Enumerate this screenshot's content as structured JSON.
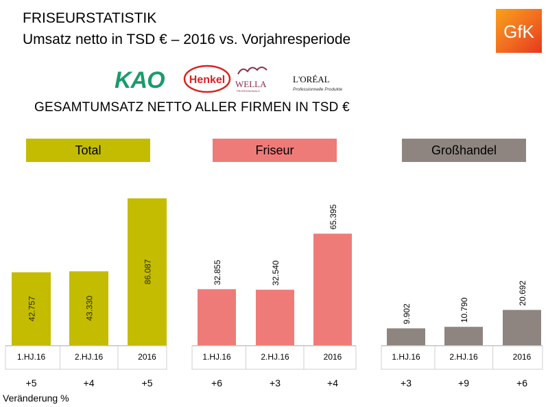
{
  "header": {
    "title": "FRISEURSTATISTIK",
    "subtitle": "Umsatz netto in TSD € – 2016 vs. Vorjahresperiode",
    "section_title": "GESAMTUMSATZ NETTO ALLER FIRMEN IN TSD €"
  },
  "logos": {
    "gfk": "GfK",
    "kao": "KAO",
    "henkel": "Henkel",
    "wella": "WELLA",
    "wella_sub": "PROFESSIONALS",
    "loreal": "L'ORÉAL",
    "loreal_sub": "Professionnelle Produkte"
  },
  "footnote": "Veränderung %",
  "chart_data": [
    {
      "type": "bar",
      "title": "Total",
      "color": "#c4bc00",
      "categories": [
        "1.HJ.16",
        "2.HJ.16",
        "2016"
      ],
      "values": [
        42757,
        43330,
        86087
      ],
      "value_labels": [
        "42.757",
        "43.330",
        "86.087"
      ],
      "changes": [
        "+5",
        "+4",
        "+5"
      ],
      "ylim": [
        0,
        86087
      ]
    },
    {
      "type": "bar",
      "title": "Friseur",
      "color": "#ef7b78",
      "categories": [
        "1.HJ.16",
        "2.HJ.16",
        "2016"
      ],
      "values": [
        32855,
        32540,
        65395
      ],
      "value_labels": [
        "32.855",
        "32.540",
        "65.395"
      ],
      "changes": [
        "+6",
        "+3",
        "+4"
      ],
      "ylim": [
        0,
        86087
      ]
    },
    {
      "type": "bar",
      "title": "Großhandel",
      "color": "#8e8580",
      "categories": [
        "1.HJ.16",
        "2.HJ.16",
        "2016"
      ],
      "values": [
        9902,
        10790,
        20692
      ],
      "value_labels": [
        "9.902",
        "10.790",
        "20.692"
      ],
      "changes": [
        "+3",
        "+9",
        "+6"
      ],
      "ylim": [
        0,
        86087
      ]
    }
  ]
}
